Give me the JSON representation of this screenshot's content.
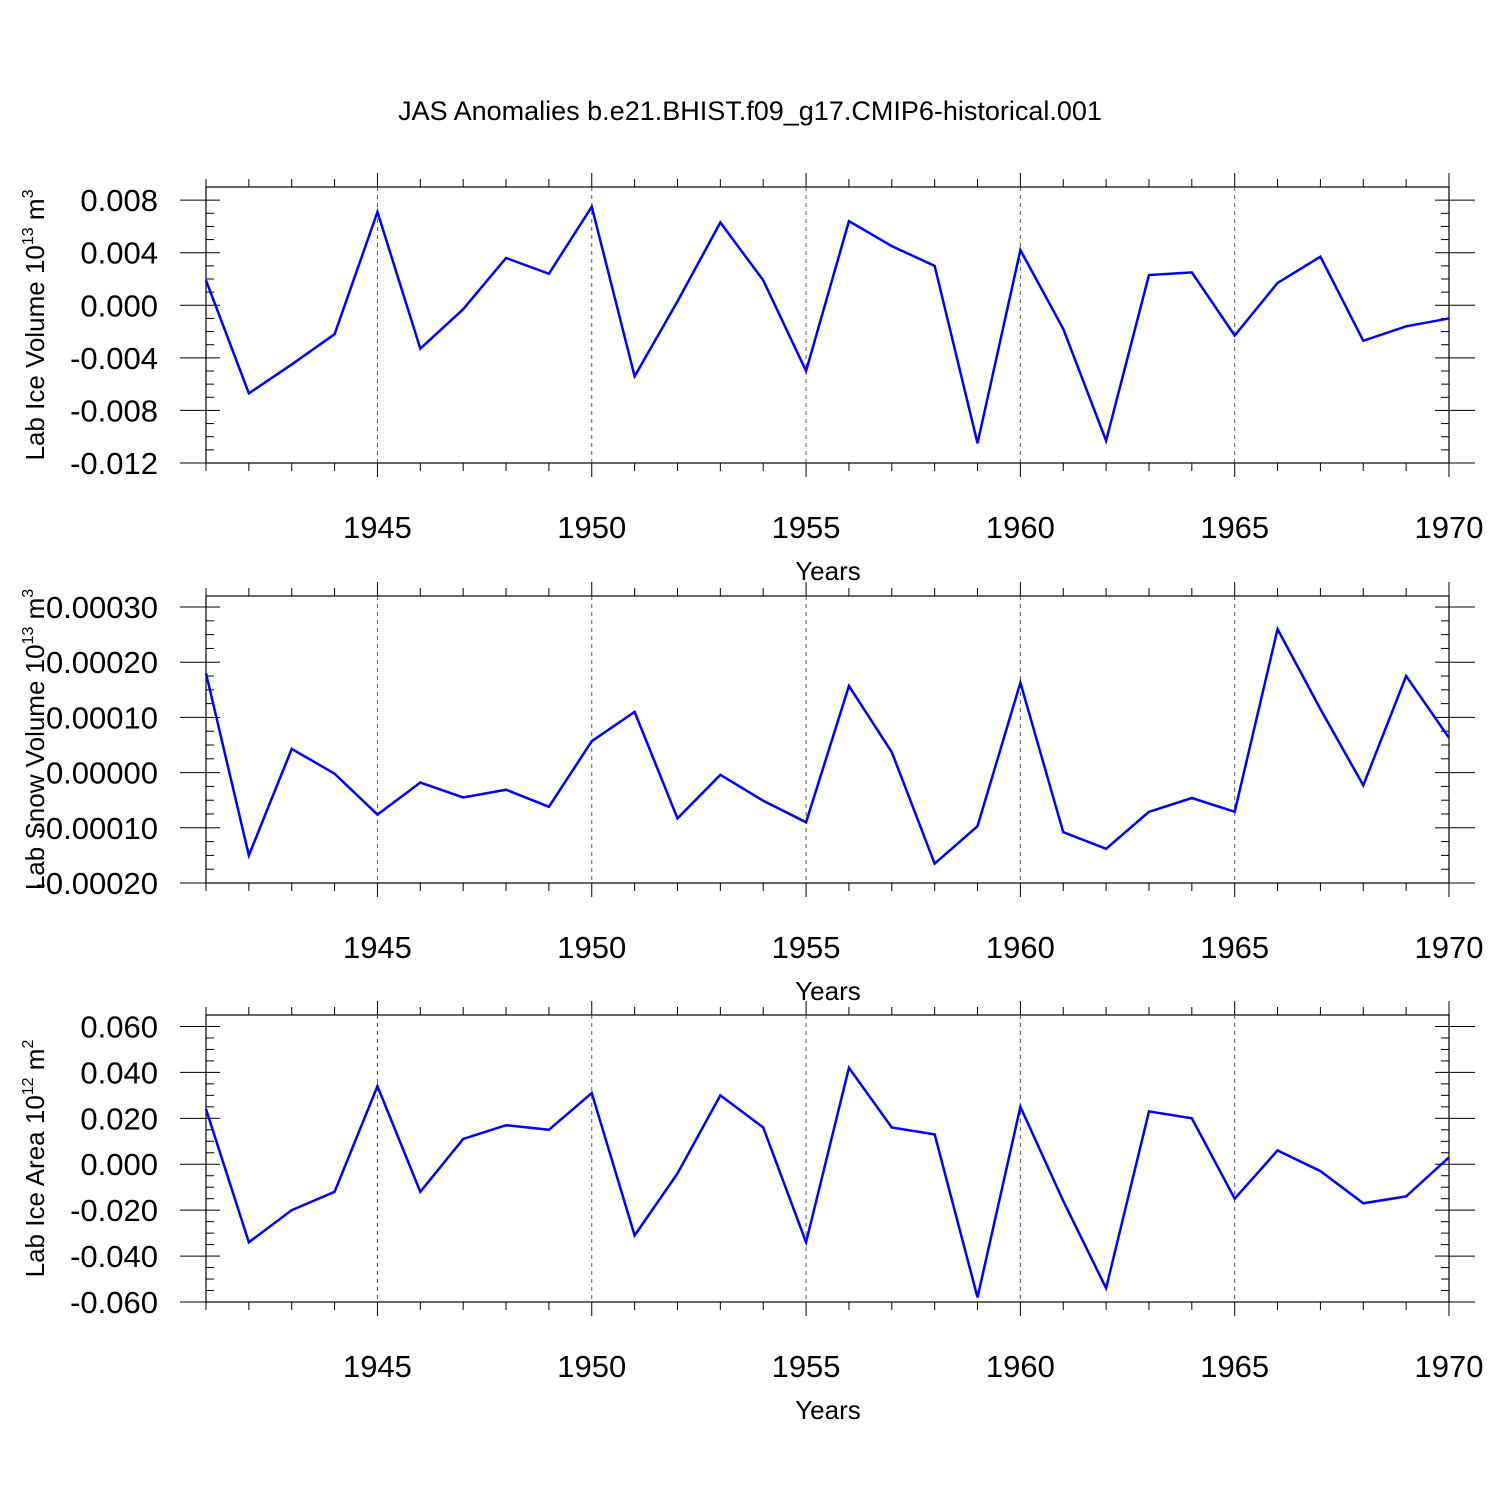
{
  "title": "JAS Anomalies b.e21.BHIST.f09_g17.CMIP6-historical.001",
  "colors": {
    "series": "#0000ff",
    "axis": "#000000",
    "grid": "#555555"
  },
  "chart_data": [
    {
      "type": "line",
      "title": "",
      "xlabel": "Years",
      "ylabel_base": "Lab Ice Volume 10",
      "ylabel_exp": "13",
      "ylabel_unit": " m",
      "ylabel_unit_exp": "3",
      "xlim": [
        1941,
        1970
      ],
      "ylim": [
        -0.012,
        0.009
      ],
      "yticks": [
        -0.012,
        -0.008,
        -0.004,
        0.0,
        0.004,
        0.008
      ],
      "ytick_labels": [
        "-0.012",
        "-0.008",
        "-0.004",
        "0.000",
        "0.004",
        "0.008"
      ],
      "xticks": [
        1945,
        1950,
        1955,
        1960,
        1965,
        1970
      ],
      "xtick_labels": [
        "1945",
        "1950",
        "1955",
        "1960",
        "1965",
        "1970"
      ],
      "series": [
        {
          "name": "Lab Ice Volume",
          "x": [
            1941,
            1942,
            1943,
            1944,
            1945,
            1946,
            1947,
            1948,
            1949,
            1950,
            1951,
            1952,
            1953,
            1954,
            1955,
            1956,
            1957,
            1958,
            1959,
            1960,
            1961,
            1962,
            1963,
            1964,
            1965,
            1966,
            1967,
            1968,
            1969,
            1970
          ],
          "values": [
            0.0019,
            -0.0067,
            -0.0045,
            -0.0022,
            0.0071,
            -0.0033,
            -0.0003,
            0.0036,
            0.0024,
            0.0075,
            -0.0054,
            0.0003,
            0.0063,
            0.0019,
            -0.005,
            0.0064,
            0.0045,
            0.003,
            -0.0105,
            0.0042,
            -0.0018,
            -0.0103,
            0.0023,
            0.0025,
            -0.0023,
            0.0017,
            0.0037,
            -0.0027,
            -0.0016,
            -0.001
          ]
        }
      ]
    },
    {
      "type": "line",
      "title": "",
      "xlabel": "Years",
      "ylabel_base": "Lab Snow Volume 10",
      "ylabel_exp": "13",
      "ylabel_unit": " m",
      "ylabel_unit_exp": "3",
      "xlim": [
        1941,
        1970
      ],
      "ylim": [
        -0.0002,
        0.0003
      ],
      "yticks": [
        -0.0002,
        -0.0001,
        0.0,
        0.0001,
        0.0002,
        0.0003
      ],
      "ytick_labels": [
        "-0.00020",
        "-0.00010",
        "0.00000",
        "0.00010",
        "0.00020",
        "0.00030"
      ],
      "xticks": [
        1945,
        1950,
        1955,
        1960,
        1965,
        1970
      ],
      "xtick_labels": [
        "1945",
        "1950",
        "1955",
        "1960",
        "1965",
        "1970"
      ],
      "series": [
        {
          "name": "Lab Snow Volume",
          "x": [
            1941,
            1942,
            1943,
            1944,
            1945,
            1946,
            1947,
            1948,
            1949,
            1950,
            1951,
            1952,
            1953,
            1954,
            1955,
            1956,
            1957,
            1958,
            1959,
            1960,
            1961,
            1962,
            1963,
            1964,
            1965,
            1966,
            1967,
            1968,
            1969,
            1970
          ],
          "values": [
            0.00018,
            -0.00015,
            4.3e-05,
            -2e-06,
            -7.6e-05,
            -1.8e-05,
            -4.5e-05,
            -3.1e-05,
            -6.2e-05,
            5.7e-05,
            0.00011,
            -8.3e-05,
            -4e-06,
            -5.1e-05,
            -9e-05,
            0.000157,
            3.7e-05,
            -0.000165,
            -9.7e-05,
            0.000163,
            -0.000108,
            -0.000138,
            -7.1e-05,
            -4.6e-05,
            -7.1e-05,
            0.00026,
            0.000115,
            -2.3e-05,
            0.000175,
            6.3e-05
          ]
        }
      ]
    },
    {
      "type": "line",
      "title": "",
      "xlabel": "Years",
      "ylabel_base": "Lab Ice Area 10",
      "ylabel_exp": "12",
      "ylabel_unit": " m",
      "ylabel_unit_exp": "2",
      "xlim": [
        1941,
        1970
      ],
      "ylim": [
        -0.06,
        0.06
      ],
      "yticks": [
        -0.06,
        -0.04,
        -0.02,
        0.0,
        0.02,
        0.04,
        0.06
      ],
      "ytick_labels": [
        "-0.060",
        "-0.040",
        "-0.020",
        "0.000",
        "0.020",
        "0.040",
        "0.060"
      ],
      "xticks": [
        1945,
        1950,
        1955,
        1960,
        1965,
        1970
      ],
      "xtick_labels": [
        "1945",
        "1950",
        "1955",
        "1960",
        "1965",
        "1970"
      ],
      "series": [
        {
          "name": "Lab Ice Area",
          "x": [
            1941,
            1942,
            1943,
            1944,
            1945,
            1946,
            1947,
            1948,
            1949,
            1950,
            1951,
            1952,
            1953,
            1954,
            1955,
            1956,
            1957,
            1958,
            1959,
            1960,
            1961,
            1962,
            1963,
            1964,
            1965,
            1966,
            1967,
            1968,
            1969,
            1970
          ],
          "values": [
            0.024,
            -0.034,
            -0.02,
            -0.012,
            0.034,
            -0.012,
            0.011,
            0.017,
            0.015,
            0.031,
            -0.031,
            -0.004,
            0.03,
            0.016,
            -0.034,
            0.042,
            0.016,
            0.013,
            -0.058,
            0.025,
            -0.016,
            -0.054,
            0.023,
            0.02,
            -0.015,
            0.006,
            -0.003,
            -0.017,
            -0.014,
            0.003
          ]
        }
      ]
    }
  ]
}
